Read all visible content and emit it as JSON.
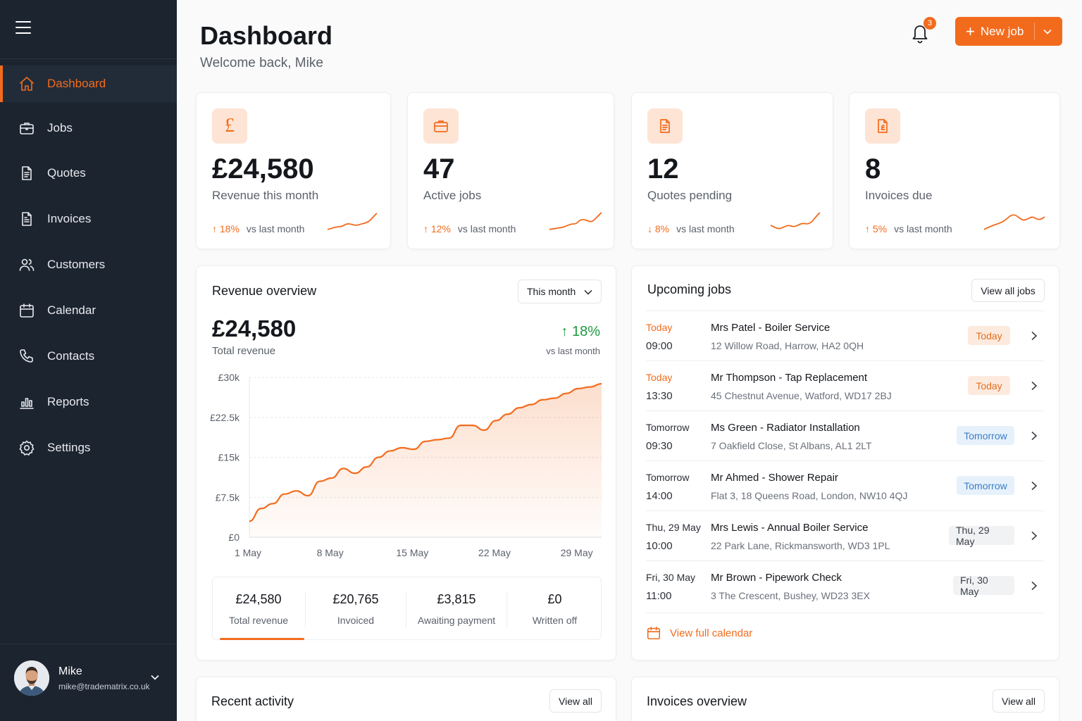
{
  "sidebar": {
    "items": [
      {
        "label": "Dashboard",
        "icon": "home-icon"
      },
      {
        "label": "Jobs",
        "icon": "briefcase-icon"
      },
      {
        "label": "Quotes",
        "icon": "document-icon"
      },
      {
        "label": "Invoices",
        "icon": "invoice-icon"
      },
      {
        "label": "Customers",
        "icon": "users-icon"
      },
      {
        "label": "Calendar",
        "icon": "calendar-icon"
      },
      {
        "label": "Contacts",
        "icon": "phone-icon"
      },
      {
        "label": "Reports",
        "icon": "chart-icon"
      },
      {
        "label": "Settings",
        "icon": "gear-icon"
      }
    ],
    "active": "Dashboard",
    "user": {
      "name": "Mike",
      "email": "mike@tradematrix.co.uk"
    }
  },
  "header": {
    "title": "Dashboard",
    "subtitle": "Welcome back, Mike",
    "notification_count": "3",
    "new_job_label": "New job"
  },
  "stats": [
    {
      "value": "£24,580",
      "label": "Revenue this month",
      "delta": "18%",
      "direction": "up",
      "vs": "vs last month",
      "icon": "pound-icon"
    },
    {
      "value": "47",
      "label": "Active jobs",
      "delta": "12%",
      "direction": "up",
      "vs": "vs last month",
      "icon": "briefcase-icon"
    },
    {
      "value": "12",
      "label": "Quotes pending",
      "delta": "8%",
      "direction": "down",
      "vs": "vs last month",
      "icon": "document-icon"
    },
    {
      "value": "8",
      "label": "Invoices due",
      "delta": "5%",
      "direction": "up",
      "vs": "vs last month",
      "icon": "invoice-icon"
    }
  ],
  "revenue": {
    "title": "Revenue overview",
    "period": "This month",
    "total": "£24,580",
    "total_label": "Total revenue",
    "change": "18%",
    "change_label": "vs last month",
    "summary": [
      {
        "value": "£24,580",
        "label": "Total revenue"
      },
      {
        "value": "£20,765",
        "label": "Invoiced"
      },
      {
        "value": "£3,815",
        "label": "Awaiting payment"
      },
      {
        "value": "£0",
        "label": "Written off"
      }
    ]
  },
  "chart_data": {
    "type": "area",
    "title": "Revenue overview",
    "xlabel": "",
    "ylabel": "",
    "x_tick_labels": [
      "1 May",
      "8 May",
      "15 May",
      "22 May",
      "29 May"
    ],
    "y_tick_labels": [
      "£0",
      "£7.5k",
      "£15k",
      "£22.5k",
      "£30k"
    ],
    "ylim": [
      0,
      30000
    ],
    "xlim": [
      1,
      31
    ],
    "grid": true,
    "color": "#f26b1d",
    "series": [
      {
        "x": [
          1,
          2,
          3,
          4,
          5,
          6,
          7,
          8,
          9,
          10,
          11,
          12,
          13,
          14,
          15,
          16,
          17,
          18,
          19,
          20,
          21,
          22,
          23,
          24,
          25,
          26,
          27,
          28,
          29,
          30,
          31
        ],
        "values": [
          3000,
          5400,
          6300,
          8100,
          8700,
          7800,
          10500,
          11100,
          12900,
          12000,
          13200,
          15000,
          16200,
          16800,
          16500,
          18000,
          18300,
          18600,
          21000,
          21000,
          20100,
          21900,
          23100,
          24300,
          24900,
          25800,
          26100,
          27000,
          27900,
          28200,
          28800
        ]
      }
    ]
  },
  "upcoming": {
    "title": "Upcoming jobs",
    "view_all": "View all jobs",
    "jobs": [
      {
        "day": "Today",
        "time": "09:00",
        "title": "Mrs Patel - Boiler Service",
        "address": "12 Willow Road, Harrow, HA2 0QH",
        "tag": "Today",
        "tag_type": "today"
      },
      {
        "day": "Today",
        "time": "13:30",
        "title": "Mr Thompson - Tap Replacement",
        "address": "45 Chestnut Avenue, Watford, WD17 2BJ",
        "tag": "Today",
        "tag_type": "today"
      },
      {
        "day": "Tomorrow",
        "time": "09:30",
        "title": "Ms Green - Radiator Installation",
        "address": "7 Oakfield Close, St Albans, AL1 2LT",
        "tag": "Tomorrow",
        "tag_type": "tomorrow"
      },
      {
        "day": "Tomorrow",
        "time": "14:00",
        "title": "Mr Ahmed - Shower Repair",
        "address": "Flat 3, 18 Queens Road, London, NW10 4QJ",
        "tag": "Tomorrow",
        "tag_type": "tomorrow"
      },
      {
        "day": "Thu, 29 May",
        "time": "10:00",
        "title": "Mrs Lewis - Annual Boiler Service",
        "address": "22 Park Lane, Rickmansworth, WD3 1PL",
        "tag": "Thu, 29 May",
        "tag_type": "date"
      },
      {
        "day": "Fri, 30 May",
        "time": "11:00",
        "title": "Mr Brown - Pipework Check",
        "address": "3 The Crescent, Bushey, WD23 3EX",
        "tag": "Fri, 30 May",
        "tag_type": "date"
      }
    ],
    "calendar_link": "View full calendar"
  },
  "recent_activity": {
    "title": "Recent activity",
    "view_all": "View all"
  },
  "invoices_overview": {
    "title": "Invoices overview",
    "view_all": "View all"
  },
  "colors": {
    "accent": "#f26b1d",
    "sidebar_bg": "#1c2430",
    "positive": "#1d9a3e",
    "tomorrow": "#3a7ec5"
  }
}
